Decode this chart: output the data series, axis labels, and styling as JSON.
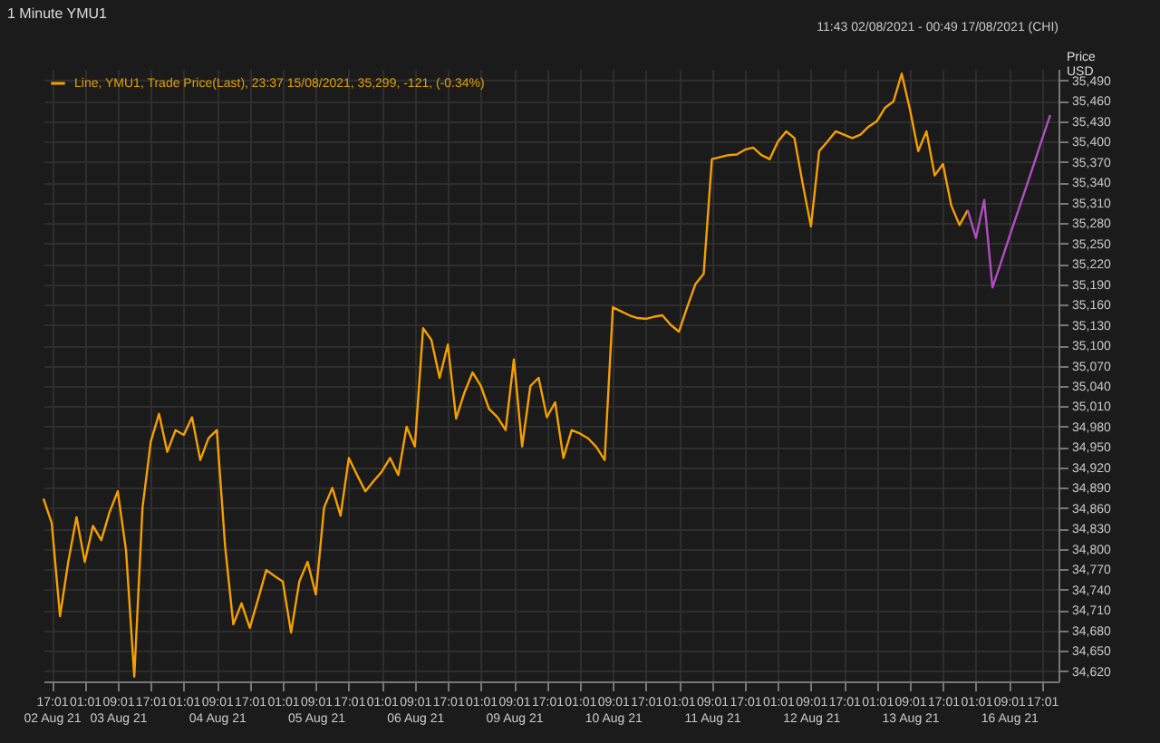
{
  "chart_data": {
    "type": "line",
    "title": "1 Minute YMU1",
    "annotations": [
      "11:43 02/08/2021 - 00:49 17/08/2021 (CHI)"
    ],
    "ylabel": "Price USD",
    "ylim": [
      34605,
      35507
    ],
    "categories": [
      null,
      "17:01\n02 Aug 21",
      null,
      null,
      null,
      "01:01",
      null,
      null,
      null,
      "09:01\n03 Aug 21",
      null,
      null,
      null,
      "17:01",
      null,
      null,
      null,
      "01:01",
      null,
      null,
      null,
      "09:01\n04 Aug 21",
      null,
      null,
      null,
      "17:01",
      null,
      null,
      null,
      "01:01",
      null,
      null,
      null,
      "09:01\n05 Aug 21",
      null,
      null,
      null,
      "17:01",
      null,
      null,
      null,
      "01:01",
      null,
      null,
      null,
      "09:01\n06 Aug 21",
      null,
      null,
      null,
      "17:01",
      null,
      null,
      null,
      "01:01",
      null,
      null,
      null,
      "09:01\n09 Aug 21",
      null,
      null,
      null,
      "17:01",
      null,
      null,
      null,
      "01:01",
      null,
      null,
      null,
      "09:01\n10 Aug 21",
      null,
      null,
      null,
      "17:01",
      null,
      null,
      null,
      "01:01",
      null,
      null,
      null,
      "09:01\n11 Aug 21",
      null,
      null,
      null,
      "17:01",
      null,
      null,
      null,
      "01:01",
      null,
      null,
      null,
      "09:01\n12 Aug 21",
      null,
      null,
      null,
      "17:01",
      null,
      null,
      null,
      "01:01",
      null,
      null,
      null,
      "09:01\n13 Aug 21",
      null,
      null,
      null,
      "17:01",
      null,
      null,
      null,
      "01:01",
      null,
      null,
      null,
      "09:01\n16 Aug 21",
      null,
      null,
      null,
      "17:01",
      null,
      null
    ],
    "yticks": [
      {
        "value": 34620,
        "label": "34,620"
      },
      {
        "value": 34650,
        "label": "34,650"
      },
      {
        "value": 34680,
        "label": "34,680"
      },
      {
        "value": 34710,
        "label": "34,710"
      },
      {
        "value": 34740,
        "label": "34,740"
      },
      {
        "value": 34770,
        "label": "34,770"
      },
      {
        "value": 34800,
        "label": "34,800"
      },
      {
        "value": 34830,
        "label": "34,830"
      },
      {
        "value": 34860,
        "label": "34,860"
      },
      {
        "value": 34890,
        "label": "34,890"
      },
      {
        "value": 34920,
        "label": "34,920"
      },
      {
        "value": 34950,
        "label": "34,950"
      },
      {
        "value": 34980,
        "label": "34,980"
      },
      {
        "value": 35010,
        "label": "35,010"
      },
      {
        "value": 35040,
        "label": "35,040"
      },
      {
        "value": 35070,
        "label": "35,070"
      },
      {
        "value": 35100,
        "label": "35,100"
      },
      {
        "value": 35130,
        "label": "35,130"
      },
      {
        "value": 35160,
        "label": "35,160"
      },
      {
        "value": 35190,
        "label": "35,190"
      },
      {
        "value": 35220,
        "label": "35,220"
      },
      {
        "value": 35250,
        "label": "35,250"
      },
      {
        "value": 35280,
        "label": "35,280"
      },
      {
        "value": 35310,
        "label": "35,310"
      },
      {
        "value": 35340,
        "label": "35,340"
      },
      {
        "value": 35370,
        "label": "35,370"
      },
      {
        "value": 35400,
        "label": "35,400"
      },
      {
        "value": 35430,
        "label": "35,430"
      },
      {
        "value": 35460,
        "label": "35,460"
      },
      {
        "value": 35490,
        "label": "35,490"
      }
    ],
    "grid": true,
    "legend": "top left",
    "line_style": "solid",
    "series": [
      {
        "name": "Line, YMU1, Trade Price(Last), 23:37 15/08/2021, 35,299, -121, (-0.34%)",
        "color": "#f5a000",
        "values": [
          34874,
          34838,
          34701,
          34781,
          34847,
          34781,
          34834,
          34813,
          34854,
          34885,
          34798,
          34612,
          34861,
          34958,
          34999,
          34943,
          34975,
          34968,
          34994,
          34931,
          34963,
          34975,
          34805,
          34689,
          34720,
          34684,
          34726,
          34769,
          34760,
          34752,
          34677,
          34752,
          34781,
          34733,
          34861,
          34890,
          34849,
          34934,
          34909,
          34885,
          34900,
          34914,
          34934,
          34909,
          34980,
          34951,
          35125,
          35108,
          35052,
          35101,
          34992,
          35030,
          35060,
          35040,
          35006,
          34994,
          34975,
          35079,
          34951,
          35040,
          35052,
          34994,
          35016,
          34934,
          34975,
          34970,
          34963,
          34950,
          34931,
          35156,
          35150,
          35144,
          35140,
          35139,
          35142,
          35144,
          35130,
          35120,
          35156,
          35190,
          35205,
          35374,
          35377,
          35380,
          35381,
          35388,
          35391,
          35380,
          35374,
          35400,
          35415,
          35405,
          35338,
          35275,
          35386,
          35400,
          35415,
          35410,
          35405,
          35410,
          35422,
          35430,
          35450,
          35459,
          35500,
          35447,
          35386,
          35415,
          35350,
          35367,
          35306,
          35277,
          35299,
          null,
          null,
          null,
          null,
          null,
          null,
          null,
          null,
          null,
          null,
          null
        ]
      },
      {
        "color": "#b04fc0",
        "values": [
          null,
          null,
          null,
          null,
          null,
          null,
          null,
          null,
          null,
          null,
          null,
          null,
          null,
          null,
          null,
          null,
          null,
          null,
          null,
          null,
          null,
          null,
          null,
          null,
          null,
          null,
          null,
          null,
          null,
          null,
          null,
          null,
          null,
          null,
          null,
          null,
          null,
          null,
          null,
          null,
          null,
          null,
          null,
          null,
          null,
          null,
          null,
          null,
          null,
          null,
          null,
          null,
          null,
          null,
          null,
          null,
          null,
          null,
          null,
          null,
          null,
          null,
          null,
          null,
          null,
          null,
          null,
          null,
          null,
          null,
          null,
          null,
          null,
          null,
          null,
          null,
          null,
          null,
          null,
          null,
          null,
          null,
          null,
          null,
          null,
          null,
          null,
          null,
          null,
          null,
          null,
          null,
          null,
          null,
          null,
          null,
          null,
          null,
          null,
          null,
          null,
          null,
          null,
          null,
          null,
          null,
          null,
          null,
          null,
          null,
          null,
          null,
          35299,
          35258,
          35314,
          35185,
          35221,
          35258,
          35294,
          35330,
          35366,
          35403,
          35439,
          null
        ]
      }
    ]
  }
}
